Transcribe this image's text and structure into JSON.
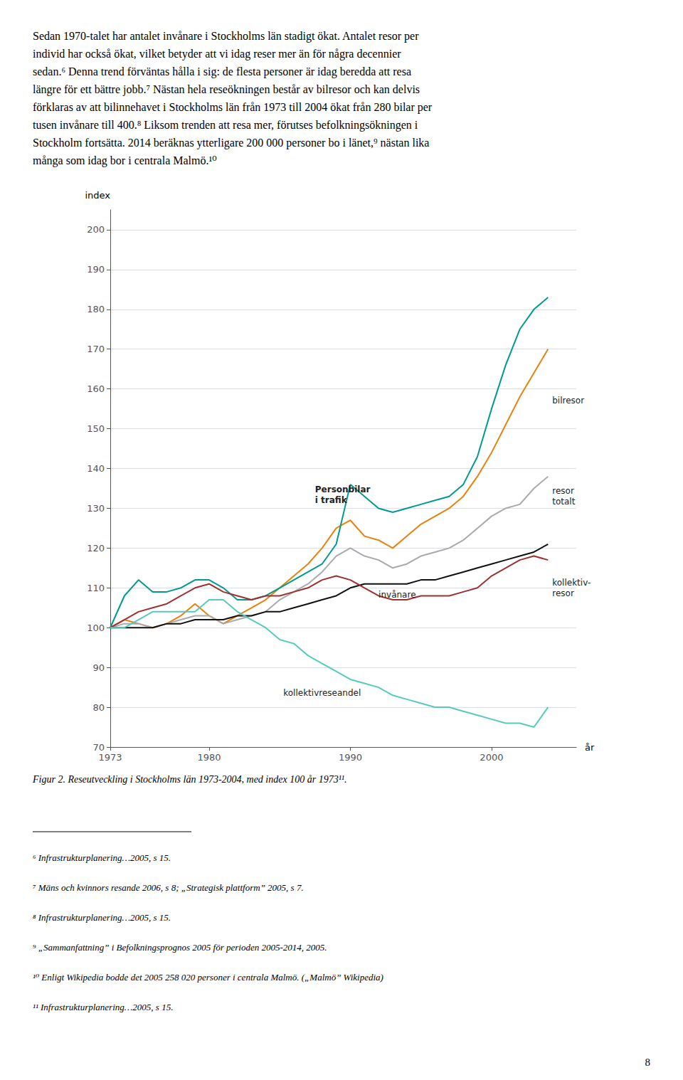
{
  "page_text": "Sedan 1970-talet har antalet invånare i Stockholms län stadigt ökat. Antalet resor per\nindivid har också ökat, vilket betyder att vi idag reser mer än för några decennier\nsedan.⁶ Denna trend förväntas hålla i sig: de flesta personer är idag beredda att resa\nlängre för ett bättre jobb.⁷ Nästan hela reseökningen består av bilresor och kan delvis\nförklaras av att bilinnehavet i Stockholms län från 1973 till 2004 ökat från 280 bilar per\ntusen invånare till 400.⁸ Liksom trenden att resa mer, förutses befolkningsökningen i\nStockholm fortsätta. 2014 beräknas ytterligare 200 000 personer bo i länet,⁹ nästan lika\nmånga som idag bor i centrala Malmö.¹⁰",
  "caption": "Figur 2. Reseutveckling i Stockholms län 1973-2004, med index 100 år 1973¹¹.",
  "footnotes": [
    "⁶ Infrastrukturplanering…2005, s 15.",
    "⁷ Mäns och kvinnors resande 2006, s 8; „Strategisk plattform” 2005, s 7.",
    "⁸ Infrastrukturplanering…2005, s 15.",
    "⁹ „Sammanfattning” i Befolkningsprognos 2005 för perioden 2005-2014, 2005.",
    "¹⁰ Enligt Wikipedia bodde det 2005 258 020 personer i centrala Malmö. („Malmö” Wikipedia)",
    "¹¹ Infrastrukturplanering…2005, s 15."
  ],
  "page_number": "8",
  "chart_data": {
    "type": "line",
    "xlabel": "år",
    "ylabel": "index",
    "x": [
      1973,
      1974,
      1975,
      1976,
      1977,
      1978,
      1979,
      1980,
      1981,
      1982,
      1983,
      1984,
      1985,
      1986,
      1987,
      1988,
      1989,
      1990,
      1991,
      1992,
      1993,
      1994,
      1995,
      1996,
      1997,
      1998,
      1999,
      2000,
      2001,
      2002,
      2003,
      2004
    ],
    "xlim": [
      1973,
      2006
    ],
    "xticks": [
      1973,
      1980,
      1990,
      2000
    ],
    "ylim": [
      70,
      205
    ],
    "yticks": [
      70,
      80,
      90,
      100,
      110,
      120,
      130,
      140,
      150,
      160,
      170,
      180,
      190,
      200
    ],
    "grid": true,
    "series": [
      {
        "name": "bilresor",
        "color": "#E8820C",
        "values": [
          100,
          102,
          101,
          100,
          101,
          103,
          106,
          103,
          101,
          103,
          105,
          107,
          110,
          113,
          116,
          120,
          125,
          127,
          123,
          122,
          120,
          123,
          126,
          128,
          130,
          133,
          138,
          144,
          151,
          158,
          164,
          170
        ]
      },
      {
        "name": "resor totalt",
        "color": "#AAAAAA",
        "values": [
          100,
          101,
          101,
          100,
          101,
          102,
          103,
          103,
          101,
          102,
          103,
          104,
          107,
          109,
          111,
          114,
          118,
          120,
          118,
          117,
          115,
          116,
          118,
          119,
          120,
          122,
          125,
          128,
          130,
          131,
          135,
          138
        ]
      },
      {
        "name": "Personbilar i trafik",
        "color": "#009B8D",
        "values": [
          100,
          108,
          112,
          109,
          109,
          110,
          112,
          112,
          110,
          107,
          107,
          108,
          110,
          112,
          114,
          116,
          121,
          136,
          133,
          130,
          129,
          130,
          131,
          132,
          133,
          136,
          143,
          155,
          166,
          175,
          180,
          183
        ]
      },
      {
        "name": "invånare",
        "color": "#111111",
        "values": [
          100,
          100,
          100,
          100,
          101,
          101,
          102,
          102,
          102,
          103,
          103,
          104,
          104,
          105,
          106,
          107,
          108,
          110,
          111,
          111,
          111,
          111,
          112,
          112,
          113,
          114,
          115,
          116,
          117,
          118,
          119,
          121
        ]
      },
      {
        "name": "kollektiv-resor",
        "color": "#A03030",
        "values": [
          100,
          102,
          104,
          105,
          106,
          108,
          110,
          111,
          109,
          108,
          107,
          108,
          108,
          109,
          110,
          112,
          113,
          112,
          110,
          108,
          107,
          107,
          108,
          108,
          108,
          109,
          110,
          113,
          115,
          117,
          118,
          117
        ]
      },
      {
        "name": "kollektivreseandel",
        "color": "#55CCBB",
        "values": [
          100,
          100,
          102,
          104,
          104,
          104,
          104,
          107,
          107,
          104,
          102,
          100,
          97,
          96,
          93,
          91,
          89,
          87,
          86,
          85,
          83,
          82,
          81,
          80,
          80,
          79,
          78,
          77,
          76,
          76,
          75,
          80
        ]
      }
    ],
    "annotations": [
      {
        "text": "Personbilar\ni trafik",
        "x": 1987.5,
        "y": 136
      },
      {
        "text": "invånare",
        "x": 1992,
        "y": 107
      },
      {
        "text": "kollektivreseandel",
        "x": 1988,
        "y": 85
      },
      {
        "text": "bilresor",
        "x": 2004.3,
        "y": 157
      },
      {
        "text": "resor\ntotalt",
        "x": 2004.3,
        "y": 133
      },
      {
        "text": "kollektiv-\nresor",
        "x": 2004.3,
        "y": 110
      }
    ]
  }
}
